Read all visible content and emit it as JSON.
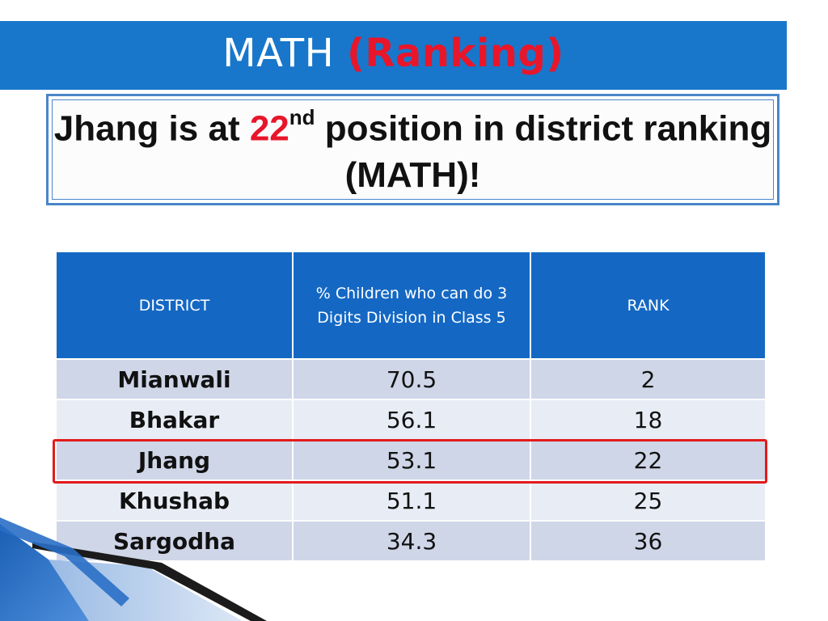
{
  "slide": {
    "title_main": "MATH",
    "title_accent": "(Ranking)",
    "subtitle_pre": "Jhang is at ",
    "subtitle_rank": "22",
    "subtitle_suffix": "nd",
    "subtitle_post": " position in district ranking (MATH)!"
  },
  "table": {
    "headers": [
      "DISTRICT",
      "% Children who can do 3 Digits Division in Class 5",
      "RANK"
    ],
    "highlighted_district": "Jhang",
    "rows": [
      {
        "district": "Mianwali",
        "percent": "70.5",
        "rank": "2"
      },
      {
        "district": "Bhakar",
        "percent": "56.1",
        "rank": "18"
      },
      {
        "district": "Jhang",
        "percent": "53.1",
        "rank": "22"
      },
      {
        "district": "Khushab",
        "percent": "51.1",
        "rank": "25"
      },
      {
        "district": "Sargodha",
        "percent": "34.3",
        "rank": "36"
      }
    ]
  },
  "colors": {
    "title_bar": "#1877cb",
    "accent_red": "#e8162a",
    "header_blue": "#1468c4",
    "row_dark": "#cfd6e8",
    "row_light": "#e8ecf5",
    "highlight_border": "#e31b1b"
  }
}
